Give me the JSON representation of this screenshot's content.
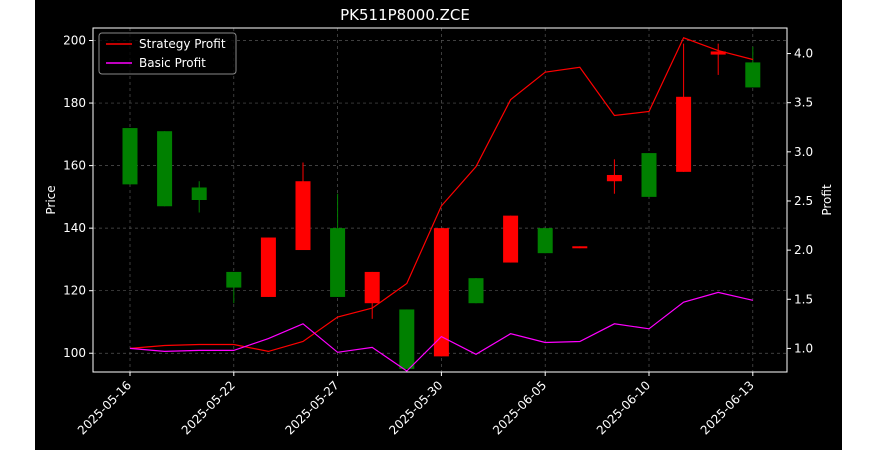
{
  "chart_data": {
    "type": "candlestick",
    "title": "PK511P8000.ZCE",
    "ylabel_left": "Price",
    "ylabel_right": "Profit",
    "background": "#000000",
    "grid": true,
    "legend_placement": "upper-left",
    "ylim_left": [
      94,
      204
    ],
    "ylim_right": [
      0.76,
      4.26
    ],
    "yticks_left": [
      100,
      120,
      140,
      160,
      180,
      200
    ],
    "yticks_right": [
      1.0,
      1.5,
      2.0,
      2.5,
      3.0,
      3.5,
      4.0
    ],
    "xticks": [
      "2025-05-16",
      "2025-05-22",
      "2025-05-27",
      "2025-05-30",
      "2025-06-05",
      "2025-06-10",
      "2025-06-13"
    ],
    "xtick_index": [
      0,
      3,
      6,
      9,
      12,
      15,
      18
    ],
    "up_color": "#008000",
    "down_color": "#ff0000",
    "candles": [
      {
        "open": 172,
        "close": 154,
        "high": 172,
        "low": 154
      },
      {
        "open": 171,
        "close": 147,
        "high": 171,
        "low": 147
      },
      {
        "open": 153,
        "close": 149,
        "high": 155,
        "low": 145
      },
      {
        "open": 126,
        "close": 121,
        "high": 126,
        "low": 116
      },
      {
        "open": 118,
        "close": 137,
        "high": 137,
        "low": 118
      },
      {
        "open": 133,
        "close": 155,
        "high": 161,
        "low": 133
      },
      {
        "open": 140,
        "close": 118,
        "high": 151,
        "low": 118
      },
      {
        "open": 116,
        "close": 126,
        "high": 126,
        "low": 111
      },
      {
        "open": 114,
        "close": 95,
        "high": 114,
        "low": 95
      },
      {
        "open": 99,
        "close": 140,
        "high": 140,
        "low": 99
      },
      {
        "open": 124,
        "close": 116,
        "high": 124,
        "low": 116
      },
      {
        "open": 129,
        "close": 144,
        "high": 144,
        "low": 129
      },
      {
        "open": 140,
        "close": 132,
        "high": 140,
        "low": 132
      },
      {
        "open": 133.6,
        "close": 134.2,
        "high": 134.2,
        "low": 133.6
      },
      {
        "open": 155,
        "close": 157,
        "high": 162,
        "low": 151
      },
      {
        "open": 164,
        "close": 150,
        "high": 164,
        "low": 150
      },
      {
        "open": 158,
        "close": 182,
        "high": 199,
        "low": 158
      },
      {
        "open": 195.5,
        "close": 196.5,
        "high": 199,
        "low": 189
      },
      {
        "open": 193,
        "close": 185,
        "high": 198,
        "low": 185
      }
    ],
    "series": [
      {
        "name": "Strategy Profit",
        "color": "#ff0000",
        "values": [
          1.0,
          1.03,
          1.04,
          1.04,
          0.97,
          1.07,
          1.32,
          1.41,
          1.66,
          2.45,
          2.85,
          3.53,
          3.81,
          3.86,
          3.37,
          3.41,
          4.16,
          4.03,
          3.94
        ]
      },
      {
        "name": "Basic Profit",
        "color": "#ff00ff",
        "values": [
          1.0,
          0.97,
          0.98,
          0.98,
          1.1,
          1.25,
          0.96,
          1.01,
          0.77,
          1.12,
          0.94,
          1.15,
          1.06,
          1.07,
          1.25,
          1.2,
          1.47,
          1.57,
          1.49
        ]
      }
    ]
  }
}
